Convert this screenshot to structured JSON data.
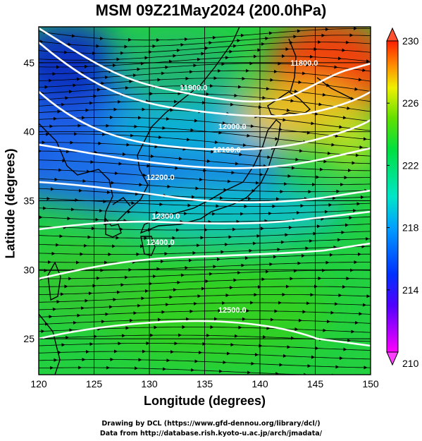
{
  "title": "MSM 09Z21May2024 (200.0hPa)",
  "map": {
    "xlabel": "Longitude (degrees)",
    "ylabel": "Latitude  (degrees)",
    "lon_range": [
      120,
      150
    ],
    "lat_range": [
      22.4,
      47.6
    ],
    "x_ticks": [
      "120",
      "125",
      "130",
      "135",
      "140",
      "145",
      "150"
    ],
    "x_tick_values": [
      120,
      125,
      130,
      135,
      140,
      145,
      150
    ],
    "y_ticks": [
      "25",
      "30",
      "35",
      "40",
      "45"
    ],
    "y_tick_values": [
      25,
      30,
      35,
      40,
      45
    ],
    "grid": true,
    "field": "temperature (K) shaded, streamlines of wind, height contours",
    "contours": [
      {
        "label": "11800.0",
        "value": 11800,
        "lon": 144.0,
        "lat": 44.8
      },
      {
        "label": "11900.0",
        "value": 11900,
        "lon": 134.0,
        "lat": 43.0
      },
      {
        "label": "12000.0",
        "value": 12000,
        "lon": 137.5,
        "lat": 40.2
      },
      {
        "label": "12100.0",
        "value": 12100,
        "lon": 137.0,
        "lat": 38.5
      },
      {
        "label": "12200.0",
        "value": 12200,
        "lon": 131.0,
        "lat": 36.5
      },
      {
        "label": "12300.0",
        "value": 12300,
        "lon": 131.5,
        "lat": 33.7
      },
      {
        "label": "12400.0",
        "value": 12400,
        "lon": 131.0,
        "lat": 31.8
      },
      {
        "label": "12500.0",
        "value": 12500,
        "lon": 137.5,
        "lat": 26.9
      }
    ]
  },
  "colorbar": {
    "min": 210,
    "max": 230,
    "labels": [
      "230",
      "226",
      "222",
      "218",
      "214",
      "210"
    ],
    "label_values": [
      230,
      226,
      222,
      218,
      214,
      210
    ],
    "colors": [
      "#ff00ff",
      "#0000ff",
      "#00ffff",
      "#00ff00",
      "#ffff00",
      "#ff0000"
    ]
  },
  "credits": {
    "line1": "Drawing by DCL (https://www.gfd-dennou.org/library/dcl/)",
    "line2": "Data from http://database.rish.kyoto-u.ac.jp/arch/jmadata/"
  }
}
